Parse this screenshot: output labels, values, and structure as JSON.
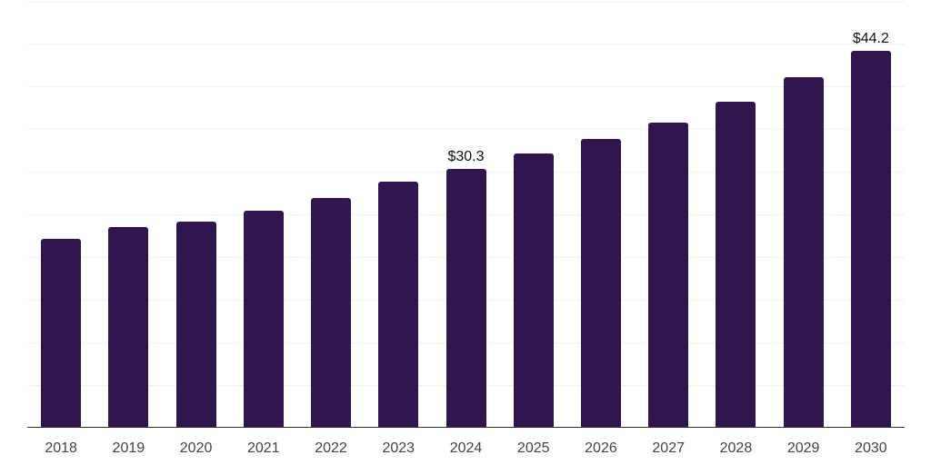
{
  "colors": {
    "bar": "#31154e",
    "gridline": "#f0f0f2",
    "axis_line": "#2e2e2e",
    "tick_label": "#434343",
    "value_label": "#111111",
    "background": "#ffffff"
  },
  "chart_data": {
    "type": "bar",
    "title": "",
    "xlabel": "",
    "ylabel": "",
    "categories": [
      "2018",
      "2019",
      "2020",
      "2021",
      "2022",
      "2023",
      "2024",
      "2025",
      "2026",
      "2027",
      "2028",
      "2029",
      "2030"
    ],
    "values": [
      22.1,
      23.5,
      24.2,
      25.4,
      26.9,
      28.8,
      30.3,
      32.1,
      33.8,
      35.7,
      38.2,
      41.1,
      44.2
    ],
    "bar_labels": [
      "",
      "",
      "",
      "",
      "",
      "",
      "$30.3",
      "",
      "",
      "",
      "",
      "",
      "$44.2"
    ],
    "ylim": [
      0,
      50
    ],
    "gridline_step": 5,
    "grid": true,
    "y_tick_labels_visible": false,
    "legend": false
  }
}
